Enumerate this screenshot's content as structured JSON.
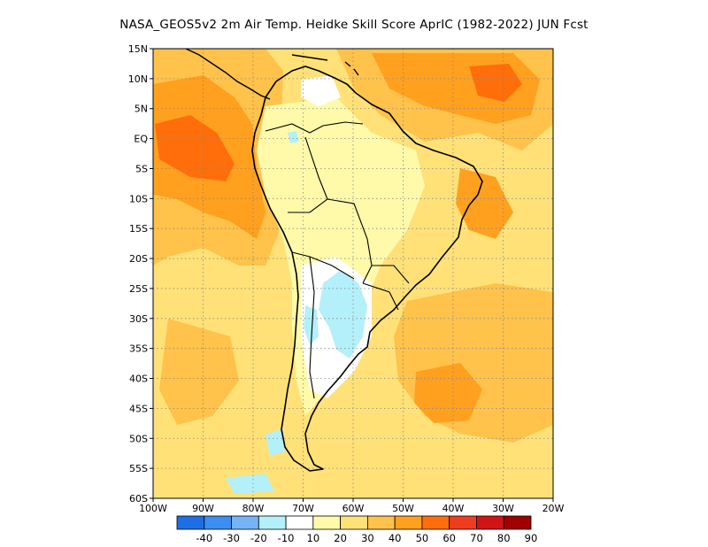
{
  "title": "NASA_GEOS5v2  2m Air Temp. Heidke Skill Score AprIC (1982-2022) JUN Fcst",
  "lat_labels": [
    "15N",
    "10N",
    "5N",
    "EQ",
    "5S",
    "10S",
    "15S",
    "20S",
    "25S",
    "30S",
    "35S",
    "40S",
    "45S",
    "50S",
    "55S",
    "60S"
  ],
  "lon_labels": [
    "100W",
    "90W",
    "80W",
    "70W",
    "60W",
    "50W",
    "40W",
    "30W",
    "20W"
  ],
  "colorbar": {
    "labels": [
      "-40",
      "-30",
      "-20",
      "-10",
      "10",
      "20",
      "30",
      "40",
      "50",
      "60",
      "70",
      "80",
      "90"
    ],
    "colors": [
      "#1e6fe6",
      "#3c8ef0",
      "#76b4f5",
      "#b4f0fa",
      "#ffffff",
      "#fffaaa",
      "#ffe178",
      "#ffc24a",
      "#ffa01e",
      "#ff6e0a",
      "#f03c1e",
      "#d21414",
      "#a00000"
    ]
  },
  "map": {
    "grid": "dotted",
    "field_colors": {
      "white": "#ffffff",
      "light_yellow": "#fffaaa",
      "yellow": "#ffe178",
      "light_orange": "#ffc24a",
      "orange": "#ffa01e",
      "dark_orange": "#ff6e0a",
      "light_blue": "#b4f0fa"
    }
  }
}
